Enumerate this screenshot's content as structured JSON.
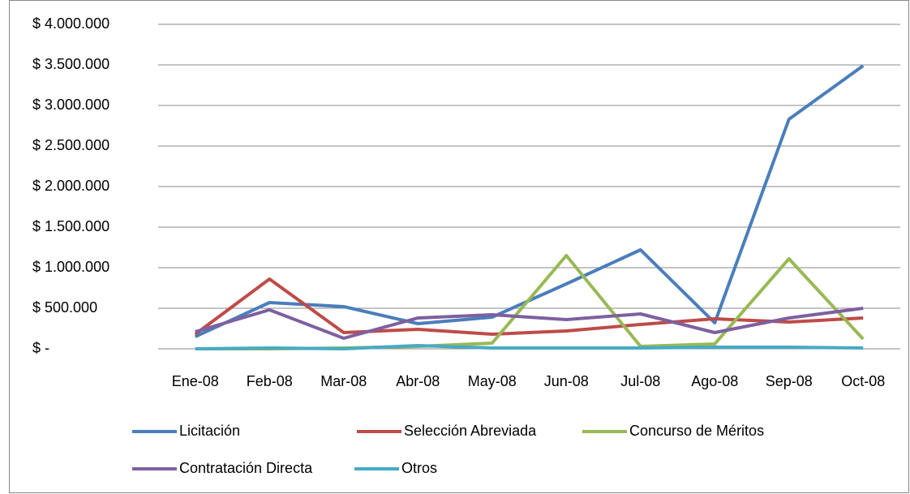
{
  "chart_data": {
    "type": "line",
    "categories": [
      "Ene-08",
      "Feb-08",
      "Mar-08",
      "Abr-08",
      "May-08",
      "Jun-08",
      "Jul-08",
      "Ago-08",
      "Sep-08",
      "Oct-08"
    ],
    "series": [
      {
        "name": "Licitación",
        "color": "#4a7ebb",
        "values": [
          150000,
          570000,
          520000,
          310000,
          390000,
          800000,
          1220000,
          320000,
          2830000,
          3490000
        ]
      },
      {
        "name": "Selección Abreviada",
        "color": "#be4b48",
        "values": [
          180000,
          860000,
          200000,
          240000,
          180000,
          220000,
          300000,
          370000,
          330000,
          380000
        ]
      },
      {
        "name": "Concurso de Méritos",
        "color": "#98b954",
        "values": [
          0,
          0,
          10000,
          30000,
          70000,
          1150000,
          30000,
          60000,
          1110000,
          120000
        ]
      },
      {
        "name": "Contratación Directa",
        "color": "#7d60a0",
        "values": [
          210000,
          480000,
          130000,
          380000,
          420000,
          360000,
          430000,
          200000,
          380000,
          500000
        ]
      },
      {
        "name": "Otros",
        "color": "#46aac5",
        "values": [
          0,
          10000,
          0,
          40000,
          10000,
          10000,
          10000,
          20000,
          20000,
          10000
        ]
      }
    ],
    "ylim": [
      0,
      4000000
    ],
    "yticks": [
      {
        "value": 0,
        "label": "$ -"
      },
      {
        "value": 500000,
        "label": "$ 500.000"
      },
      {
        "value": 1000000,
        "label": "$ 1.000.000"
      },
      {
        "value": 1500000,
        "label": "$ 1.500.000"
      },
      {
        "value": 2000000,
        "label": "$ 2.000.000"
      },
      {
        "value": 2500000,
        "label": "$ 2.500.000"
      },
      {
        "value": 3000000,
        "label": "$ 3.000.000"
      },
      {
        "value": 3500000,
        "label": "$ 3.500.000"
      },
      {
        "value": 4000000,
        "label": "$ 4.000.000"
      }
    ],
    "grid": true,
    "legend": "bottom"
  }
}
